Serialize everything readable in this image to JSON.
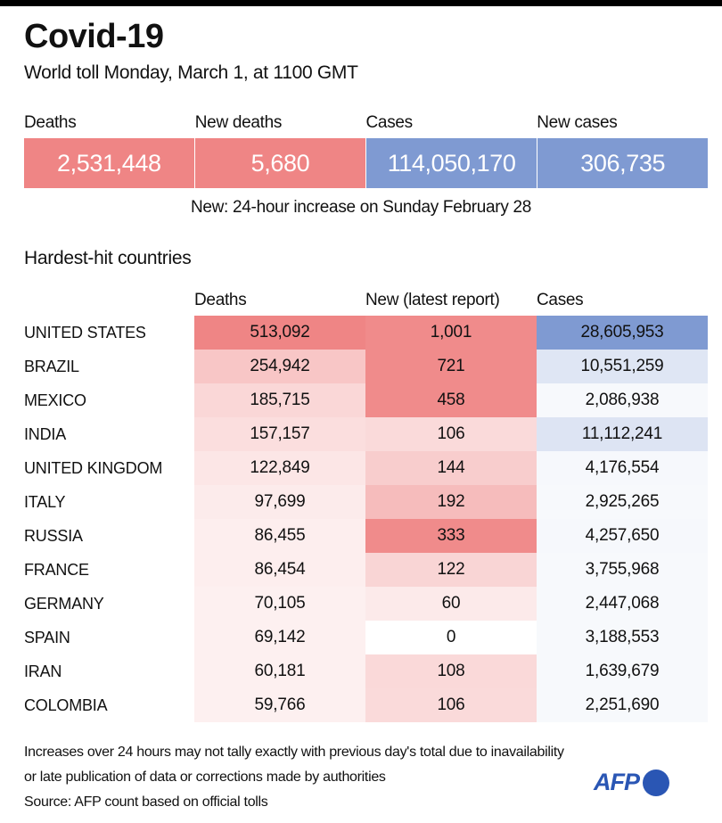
{
  "header": {
    "title": "Covid-19",
    "subtitle": "World toll Monday, March 1,  at 1100 GMT"
  },
  "kpis": [
    {
      "label": "Deaths",
      "value": "2,531,448",
      "color": "#ef8585"
    },
    {
      "label": "New deaths",
      "value": "5,680",
      "color": "#ef8585"
    },
    {
      "label": "Cases",
      "value": "114,050,170",
      "color": "#7f9ad2"
    },
    {
      "label": "New cases",
      "value": "306,735",
      "color": "#7f9ad2"
    }
  ],
  "kpi_note": "New: 24-hour increase on Sunday February 28",
  "section_title": "Hardest-hit countries",
  "colors": {
    "red_max": "#ef8585",
    "blue_max": "#7f9ad2",
    "white": "#ffffff"
  },
  "chart_data": {
    "type": "table",
    "title": "Hardest-hit countries",
    "columns": [
      "",
      "Deaths",
      "New (latest report)",
      "Cases"
    ],
    "rows": [
      {
        "country": "UNITED STATES",
        "deaths": "513,092",
        "new": "1,001",
        "cases": "28,605,953"
      },
      {
        "country": "BRAZIL",
        "deaths": "254,942",
        "new": "721",
        "cases": "10,551,259"
      },
      {
        "country": "MEXICO",
        "deaths": "185,715",
        "new": "458",
        "cases": "2,086,938"
      },
      {
        "country": "INDIA",
        "deaths": "157,157",
        "new": "106",
        "cases": "11,112,241"
      },
      {
        "country": "UNITED KINGDOM",
        "deaths": "122,849",
        "new": "144",
        "cases": "4,176,554"
      },
      {
        "country": "ITALY",
        "deaths": "97,699",
        "new": "192",
        "cases": "2,925,265"
      },
      {
        "country": "RUSSIA",
        "deaths": "86,455",
        "new": "333",
        "cases": "4,257,650"
      },
      {
        "country": "FRANCE",
        "deaths": "86,454",
        "new": "122",
        "cases": "3,755,968"
      },
      {
        "country": "GERMANY",
        "deaths": "70,105",
        "new": "60",
        "cases": "2,447,068"
      },
      {
        "country": "SPAIN",
        "deaths": "69,142",
        "new": "0",
        "cases": "3,188,553"
      },
      {
        "country": "IRAN",
        "deaths": "60,181",
        "new": "108",
        "cases": "1,639,679"
      },
      {
        "country": "COLOMBIA",
        "deaths": "59,766",
        "new": "106",
        "cases": "2,251,690"
      }
    ]
  },
  "footnote": {
    "line1": "Increases over 24 hours may not tally exactly with previous day's total due to inavailability",
    "line2": "or late publication of data or corrections made by authorities",
    "source": "Source: AFP count based on official tolls"
  },
  "logo": {
    "text": "AFP",
    "color": "#2a56b4"
  }
}
